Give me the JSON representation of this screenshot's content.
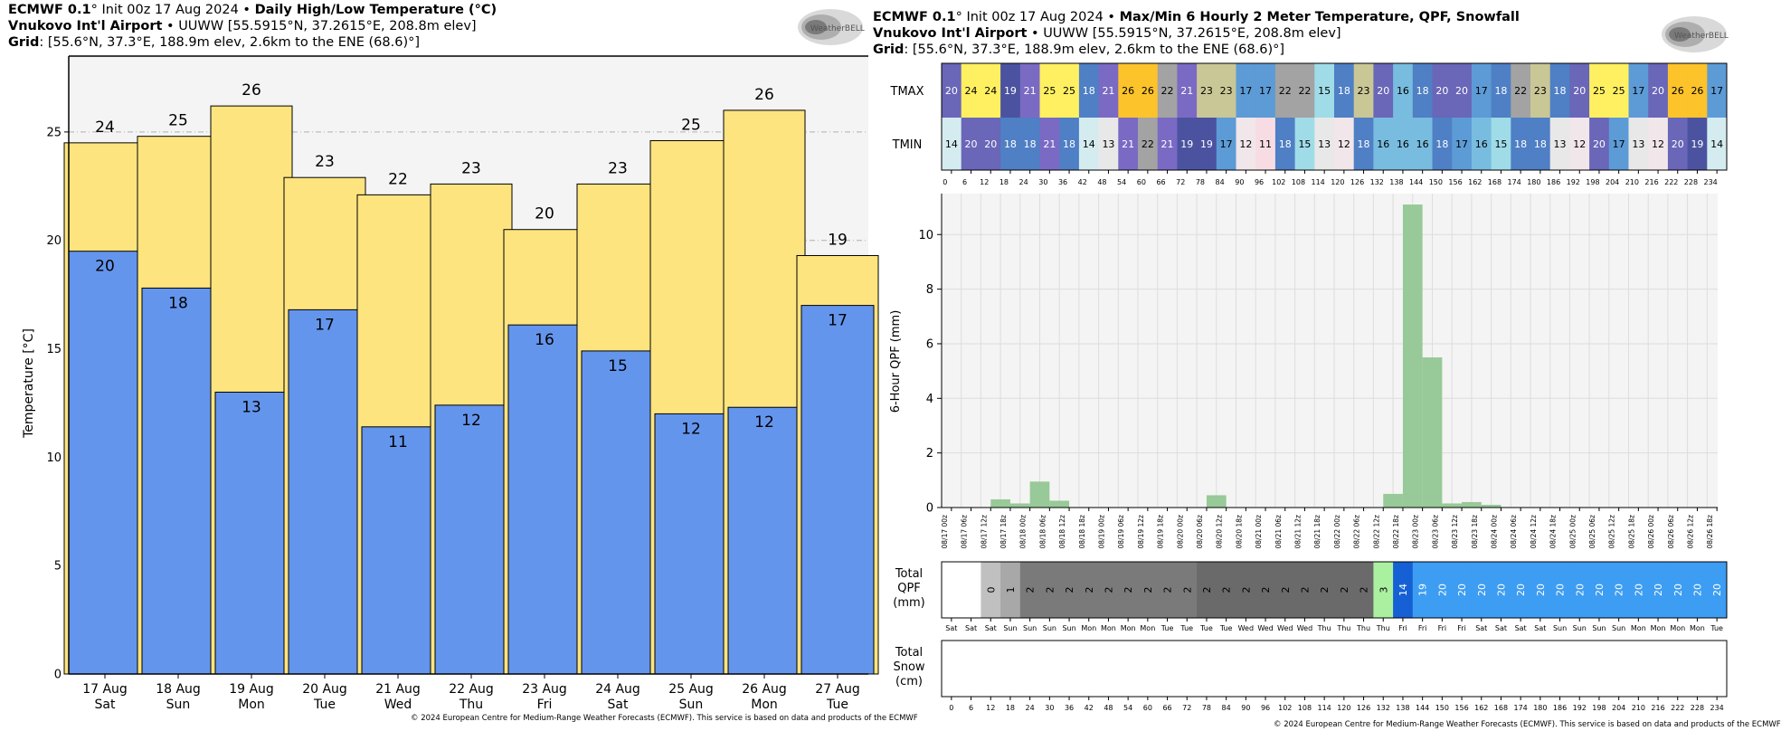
{
  "left_panel": {
    "header": {
      "model": "ECMWF 0.1",
      "init_text": "° Init 00z 17 Aug 2024",
      "bullet": " • ",
      "product": "Daily High/Low Temperature (°C)",
      "station_name": "Vnukovo Int'l Airport",
      "station_info": " • UUWW [55.5915°N, 37.2615°E, 208.8m elev]",
      "grid_label": "Grid",
      "grid_info": ": [55.6°N, 37.3°E, 188.9m elev, 2.6km to the ENE (68.6)°]"
    },
    "logo_text": "WeatherBELL",
    "copyright": "© 2024 European Centre for Medium-Range Weather Forecasts (ECMWF). This service is based on data and products of the ECMWF"
  },
  "right_panel": {
    "header": {
      "model": "ECMWF 0.1",
      "init_text": "° Init 00z 17 Aug 2024",
      "bullet": " • ",
      "product": "Max/Min 6 Hourly 2 Meter Temperature,  QPF,  Snowfall",
      "station_name": "Vnukovo Int'l Airport",
      "station_info": " • UUWW [55.5915°N, 37.2615°E, 208.8m elev]",
      "grid_label": "Grid",
      "grid_info": ": [55.6°N, 37.3°E, 188.9m elev, 2.6km to the ENE (68.6)°]"
    },
    "logo_text": "WeatherBELL",
    "copyright": "© 2024 European Centre for Medium-Range Weather Forecasts (ECMWF). This service is based on data and products of the ECMWF",
    "row_labels": {
      "tmax": "TMAX",
      "tmin": "TMIN",
      "total_qpf": [
        "Total",
        "QPF",
        "(mm)"
      ],
      "total_snow": [
        "Total",
        "Snow",
        "(cm)"
      ]
    }
  },
  "chart_data": [
    {
      "type": "bar",
      "ylabel": "Temperature [°C]",
      "ylim": [
        0,
        28.5
      ],
      "yticks": [
        0,
        5,
        10,
        15,
        20,
        25
      ],
      "grid": "horizontal dashed",
      "categories": [
        {
          "date": "17 Aug",
          "day": "Sat"
        },
        {
          "date": "18 Aug",
          "day": "Sun"
        },
        {
          "date": "19 Aug",
          "day": "Mon"
        },
        {
          "date": "20 Aug",
          "day": "Tue"
        },
        {
          "date": "21 Aug",
          "day": "Wed"
        },
        {
          "date": "22 Aug",
          "day": "Thu"
        },
        {
          "date": "23 Aug",
          "day": "Fri"
        },
        {
          "date": "24 Aug",
          "day": "Sat"
        },
        {
          "date": "25 Aug",
          "day": "Sun"
        },
        {
          "date": "26 Aug",
          "day": "Mon"
        },
        {
          "date": "27 Aug",
          "day": "Tue"
        }
      ],
      "series": [
        {
          "name": "High",
          "color": "#fde47f",
          "values": [
            24.5,
            24.8,
            26.2,
            22.9,
            22.1,
            22.6,
            20.5,
            22.6,
            24.6,
            26.0,
            19.3
          ],
          "labels": [
            "24",
            "25",
            "26",
            "23",
            "22",
            "23",
            "20",
            "23",
            "25",
            "26",
            "19"
          ]
        },
        {
          "name": "Low",
          "color": "#6495ed",
          "values": [
            19.5,
            17.8,
            13.0,
            16.8,
            11.4,
            12.4,
            16.1,
            14.9,
            12.0,
            12.3,
            17.0
          ],
          "labels": [
            "20",
            "18",
            "13",
            "17",
            "11",
            "12",
            "16",
            "15",
            "12",
            "12",
            "17"
          ]
        }
      ]
    },
    {
      "type": "bar",
      "ylabel": "6-Hour QPF (mm)",
      "ylim": [
        0,
        11.5
      ],
      "yticks": [
        0,
        2,
        4,
        6,
        8,
        10
      ],
      "grid": "on",
      "x_labels": [
        "08/17 00z",
        "08/17 06z",
        "08/17 12z",
        "08/17 18z",
        "08/18 00z",
        "08/18 06z",
        "08/18 12z",
        "08/18 18z",
        "08/19 00z",
        "08/19 06z",
        "08/19 12z",
        "08/19 18z",
        "08/20 00z",
        "08/20 06z",
        "08/20 12z",
        "08/20 18z",
        "08/21 00z",
        "08/21 06z",
        "08/21 12z",
        "08/21 18z",
        "08/22 00z",
        "08/22 06z",
        "08/22 12z",
        "08/22 18z",
        "08/23 00z",
        "08/23 06z",
        "08/23 12z",
        "08/23 18z",
        "08/24 00z",
        "08/24 06z",
        "08/24 12z",
        "08/24 18z",
        "08/25 00z",
        "08/25 06z",
        "08/25 12z",
        "08/25 18z",
        "08/26 00z",
        "08/26 06z",
        "08/26 12z",
        "08/26 18z"
      ],
      "series": [
        {
          "name": "6-Hour QPF",
          "color": "#98c998",
          "values": [
            0,
            0,
            0.3,
            0.15,
            0.95,
            0.25,
            0,
            0,
            0,
            0,
            0,
            0,
            0,
            0.45,
            0,
            0,
            0,
            0,
            0,
            0,
            0,
            0,
            0.5,
            11.1,
            5.5,
            0.15,
            0.2,
            0.1,
            0,
            0,
            0,
            0,
            0,
            0,
            0,
            0,
            0,
            0,
            0,
            0
          ]
        }
      ]
    },
    {
      "type": "table",
      "hour_ticks": [
        0,
        6,
        12,
        18,
        24,
        30,
        36,
        42,
        48,
        54,
        60,
        66,
        72,
        78,
        84,
        90,
        96,
        102,
        108,
        114,
        120,
        126,
        132,
        138,
        144,
        150,
        156,
        162,
        168,
        174,
        180,
        186,
        192,
        198,
        204,
        210,
        216,
        222,
        228,
        234
      ],
      "tmax": [
        20,
        24,
        24,
        19,
        21,
        25,
        25,
        18,
        21,
        26,
        26,
        22,
        21,
        23,
        23,
        17,
        17,
        22,
        22,
        15,
        18,
        23,
        20,
        16,
        18,
        20,
        20,
        17,
        18,
        22,
        23,
        18,
        20,
        25,
        25,
        17,
        20,
        26,
        26,
        17
      ],
      "tmin": [
        14,
        20,
        20,
        18,
        18,
        21,
        18,
        14,
        13,
        21,
        22,
        21,
        19,
        19,
        17,
        12,
        11,
        18,
        15,
        13,
        12,
        18,
        16,
        16,
        16,
        18,
        17,
        16,
        15,
        18,
        18,
        13,
        12,
        20,
        17,
        13,
        12,
        20,
        19,
        14
      ],
      "total_qpf": [
        "",
        "",
        "0",
        "1",
        "2",
        "2",
        "2",
        "2",
        "2",
        "2",
        "2",
        "2",
        "2",
        "2",
        "2",
        "2",
        "2",
        "2",
        "2",
        "2",
        "2",
        "2",
        "3",
        "14",
        "19",
        "20",
        "20",
        "20",
        "20",
        "20",
        "20",
        "20",
        "20",
        "20",
        "20",
        "20",
        "20",
        "20",
        "20",
        "20"
      ],
      "day_labels": [
        "Sat",
        "Sat",
        "Sat",
        "Sun",
        "Sun",
        "Sun",
        "Sun",
        "Mon",
        "Mon",
        "Mon",
        "Mon",
        "Tue",
        "Tue",
        "Tue",
        "Tue",
        "Wed",
        "Wed",
        "Wed",
        "Wed",
        "Thu",
        "Thu",
        "Thu",
        "Thu",
        "Fri",
        "Fri",
        "Fri",
        "Fri",
        "Sat",
        "Sat",
        "Sat",
        "Sat",
        "Sun",
        "Sun",
        "Sun",
        "Sun",
        "Mon",
        "Mon",
        "Mon",
        "Mon",
        "Tue"
      ],
      "total_snow": []
    }
  ]
}
